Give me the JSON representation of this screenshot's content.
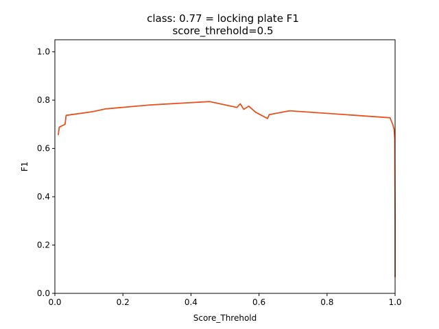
{
  "chart_data": {
    "type": "line",
    "title": "class: 0.77 = locking plate F1",
    "subtitle": "score_threhold=0.5",
    "xlabel": "Score_Threhold",
    "ylabel": "F1",
    "xlim": [
      0,
      1
    ],
    "ylim": [
      0,
      1.05
    ],
    "xticks": [
      "0.0",
      "0.2",
      "0.4",
      "0.6",
      "0.8",
      "1.0"
    ],
    "yticks": [
      "0.0",
      "0.2",
      "0.4",
      "0.6",
      "0.8",
      "1.0"
    ],
    "grid": false,
    "legend": false,
    "line_color": "#e8501a",
    "series": [
      {
        "x": [
          0.01,
          0.013,
          0.03,
          0.033,
          0.11,
          0.15,
          0.28,
          0.455,
          0.535,
          0.545,
          0.555,
          0.57,
          0.59,
          0.625,
          0.63,
          0.69,
          0.985,
          0.993,
          0.997,
          0.999,
          1.0,
          1.0
        ],
        "y": [
          0.657,
          0.688,
          0.7,
          0.737,
          0.752,
          0.764,
          0.78,
          0.794,
          0.77,
          0.785,
          0.762,
          0.775,
          0.75,
          0.724,
          0.74,
          0.756,
          0.727,
          0.7,
          0.68,
          0.64,
          0.3,
          0.068
        ]
      }
    ]
  }
}
